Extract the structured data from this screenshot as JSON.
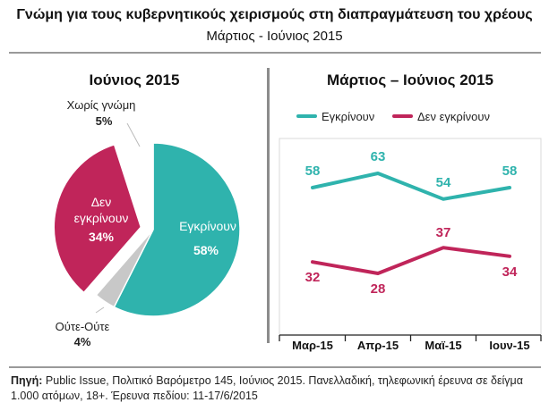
{
  "header": {
    "title": "Γνώμη για τους κυβερνητικούς χειρισμούς στη διαπραγμάτευση του χρέους",
    "subtitle": "Μάρτιος - Ιούνιος 2015"
  },
  "colors": {
    "approve": "#2fb3ad",
    "disapprove": "#c0255a",
    "neither": "#c8c8c8",
    "no_opinion": "#ffffff"
  },
  "chart_data": [
    {
      "type": "pie",
      "title": "Ιούνιος 2015",
      "slices": [
        {
          "label": "Εγκρίνουν",
          "value": 58,
          "value_label": "58%",
          "color": "#2fb3ad"
        },
        {
          "label": "Ούτε-Ούτε",
          "value": 4,
          "value_label": "4%",
          "color": "#c8c8c8"
        },
        {
          "label": "Δεν εγκρίνουν",
          "value": 34,
          "value_label": "34%",
          "color": "#c0255a"
        },
        {
          "label": "Χωρίς γνώμη",
          "value": 5,
          "value_label": "5%",
          "color": "#ffffff"
        }
      ]
    },
    {
      "type": "line",
      "title": "Μάρτιος – Ιούνιος 2015",
      "categories": [
        "Μαρ-15",
        "Απρ-15",
        "Μαϊ-15",
        "Ιουν-15"
      ],
      "series": [
        {
          "name": "Εγκρίνουν",
          "values": [
            58,
            63,
            54,
            58
          ],
          "color": "#2fb3ad"
        },
        {
          "name": "Δεν εγκρίνουν",
          "values": [
            32,
            28,
            37,
            34
          ],
          "color": "#c0255a"
        }
      ],
      "legend": "top",
      "grid": false
    }
  ],
  "source": {
    "label": "Πηγή:",
    "text": "Public Issue, Πολιτικό Βαρόμετρο 145, Ιούνιος 2015. Πανελλαδική, τηλεφωνική έρευνα σε δείγμα 1.000 ατόμων, 18+. Έρευνα πεδίου: 11-17/6/2015"
  }
}
